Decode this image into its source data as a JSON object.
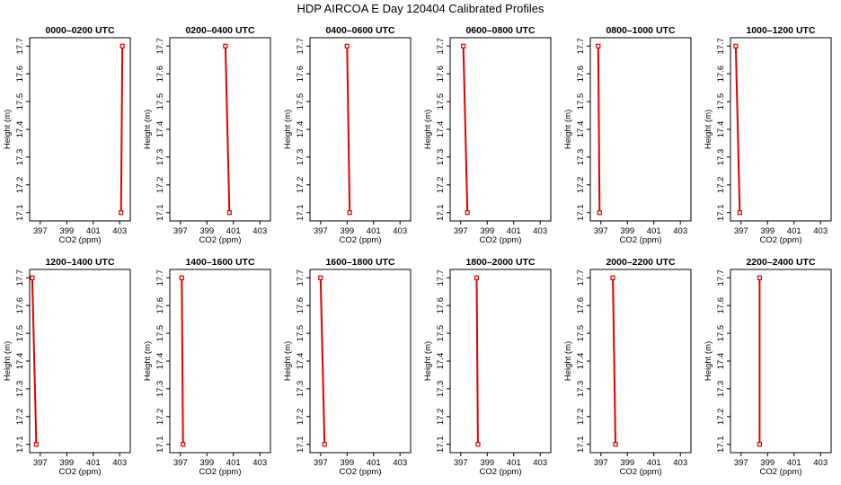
{
  "figure": {
    "title": "HDP AIRCOA E  Day 120404  Calibrated Profiles",
    "xlabel": "CO2 (ppm)",
    "ylabel": "Height (m)",
    "colors": {
      "profile": "#dd0000",
      "axes": "#000000",
      "background": "#ffffff"
    }
  },
  "chart_data": [
    {
      "type": "line",
      "title": "0000–0200 UTC",
      "xlim": [
        396.2,
        403.8
      ],
      "ylim": [
        17.07,
        17.73
      ],
      "xticks": [
        "397",
        "399",
        "401",
        "403"
      ],
      "yticks": [
        "17.1",
        "17.2",
        "17.3",
        "17.4",
        "17.5",
        "17.6",
        "17.7"
      ],
      "series": [
        {
          "x": [
            403.2,
            403.1
          ],
          "y": [
            17.7,
            17.1
          ]
        }
      ]
    },
    {
      "type": "line",
      "title": "0200–0400 UTC",
      "xlim": [
        396.2,
        403.8
      ],
      "ylim": [
        17.07,
        17.73
      ],
      "xticks": [
        "397",
        "399",
        "401",
        "403"
      ],
      "yticks": [
        "17.1",
        "17.2",
        "17.3",
        "17.4",
        "17.5",
        "17.6",
        "17.7"
      ],
      "series": [
        {
          "x": [
            400.4,
            400.7
          ],
          "y": [
            17.7,
            17.1
          ]
        }
      ]
    },
    {
      "type": "line",
      "title": "0400–0600 UTC",
      "xlim": [
        396.2,
        403.8
      ],
      "ylim": [
        17.07,
        17.73
      ],
      "xticks": [
        "397",
        "399",
        "401",
        "403"
      ],
      "yticks": [
        "17.1",
        "17.2",
        "17.3",
        "17.4",
        "17.5",
        "17.6",
        "17.7"
      ],
      "series": [
        {
          "x": [
            399.0,
            399.2
          ],
          "y": [
            17.7,
            17.1
          ]
        }
      ]
    },
    {
      "type": "line",
      "title": "0600–0800 UTC",
      "xlim": [
        396.2,
        403.8
      ],
      "ylim": [
        17.07,
        17.73
      ],
      "xticks": [
        "397",
        "399",
        "401",
        "403"
      ],
      "yticks": [
        "17.1",
        "17.2",
        "17.3",
        "17.4",
        "17.5",
        "17.6",
        "17.7"
      ],
      "series": [
        {
          "x": [
            397.2,
            397.5
          ],
          "y": [
            17.7,
            17.1
          ]
        }
      ]
    },
    {
      "type": "line",
      "title": "0800–1000 UTC",
      "xlim": [
        396.2,
        403.8
      ],
      "ylim": [
        17.07,
        17.73
      ],
      "xticks": [
        "397",
        "399",
        "401",
        "403"
      ],
      "yticks": [
        "17.1",
        "17.2",
        "17.3",
        "17.4",
        "17.5",
        "17.6",
        "17.7"
      ],
      "series": [
        {
          "x": [
            396.8,
            396.9
          ],
          "y": [
            17.7,
            17.1
          ]
        }
      ]
    },
    {
      "type": "line",
      "title": "1000–1200 UTC",
      "xlim": [
        396.2,
        403.8
      ],
      "ylim": [
        17.07,
        17.73
      ],
      "xticks": [
        "397",
        "399",
        "401",
        "403"
      ],
      "yticks": [
        "17.1",
        "17.2",
        "17.3",
        "17.4",
        "17.5",
        "17.6",
        "17.7"
      ],
      "series": [
        {
          "x": [
            396.6,
            396.9
          ],
          "y": [
            17.7,
            17.1
          ]
        }
      ]
    },
    {
      "type": "line",
      "title": "1200–1400 UTC",
      "xlim": [
        396.2,
        403.8
      ],
      "ylim": [
        17.07,
        17.73
      ],
      "xticks": [
        "397",
        "399",
        "401",
        "403"
      ],
      "yticks": [
        "17.1",
        "17.2",
        "17.3",
        "17.4",
        "17.5",
        "17.6",
        "17.7"
      ],
      "series": [
        {
          "x": [
            396.4,
            396.7
          ],
          "y": [
            17.7,
            17.1
          ]
        }
      ]
    },
    {
      "type": "line",
      "title": "1400–1600 UTC",
      "xlim": [
        396.2,
        403.8
      ],
      "ylim": [
        17.07,
        17.73
      ],
      "xticks": [
        "397",
        "399",
        "401",
        "403"
      ],
      "yticks": [
        "17.1",
        "17.2",
        "17.3",
        "17.4",
        "17.5",
        "17.6",
        "17.7"
      ],
      "series": [
        {
          "x": [
            397.1,
            397.2
          ],
          "y": [
            17.7,
            17.1
          ]
        }
      ]
    },
    {
      "type": "line",
      "title": "1600–1800 UTC",
      "xlim": [
        396.2,
        403.8
      ],
      "ylim": [
        17.07,
        17.73
      ],
      "xticks": [
        "397",
        "399",
        "401",
        "403"
      ],
      "yticks": [
        "17.1",
        "17.2",
        "17.3",
        "17.4",
        "17.5",
        "17.6",
        "17.7"
      ],
      "series": [
        {
          "x": [
            397.0,
            397.3
          ],
          "y": [
            17.7,
            17.1
          ]
        }
      ]
    },
    {
      "type": "line",
      "title": "1800–2000 UTC",
      "xlim": [
        396.2,
        403.8
      ],
      "ylim": [
        17.07,
        17.73
      ],
      "xticks": [
        "397",
        "399",
        "401",
        "403"
      ],
      "yticks": [
        "17.1",
        "17.2",
        "17.3",
        "17.4",
        "17.5",
        "17.6",
        "17.7"
      ],
      "series": [
        {
          "x": [
            398.2,
            398.3
          ],
          "y": [
            17.7,
            17.1
          ]
        }
      ]
    },
    {
      "type": "line",
      "title": "2000–2200 UTC",
      "xlim": [
        396.2,
        403.8
      ],
      "ylim": [
        17.07,
        17.73
      ],
      "xticks": [
        "397",
        "399",
        "401",
        "403"
      ],
      "yticks": [
        "17.1",
        "17.2",
        "17.3",
        "17.4",
        "17.5",
        "17.6",
        "17.7"
      ],
      "series": [
        {
          "x": [
            397.9,
            398.1
          ],
          "y": [
            17.7,
            17.1
          ]
        }
      ]
    },
    {
      "type": "line",
      "title": "2200–2400 UTC",
      "xlim": [
        396.2,
        403.8
      ],
      "ylim": [
        17.07,
        17.73
      ],
      "xticks": [
        "397",
        "399",
        "401",
        "403"
      ],
      "yticks": [
        "17.1",
        "17.2",
        "17.3",
        "17.4",
        "17.5",
        "17.6",
        "17.7"
      ],
      "series": [
        {
          "x": [
            398.4,
            398.4
          ],
          "y": [
            17.7,
            17.1
          ]
        }
      ]
    }
  ]
}
